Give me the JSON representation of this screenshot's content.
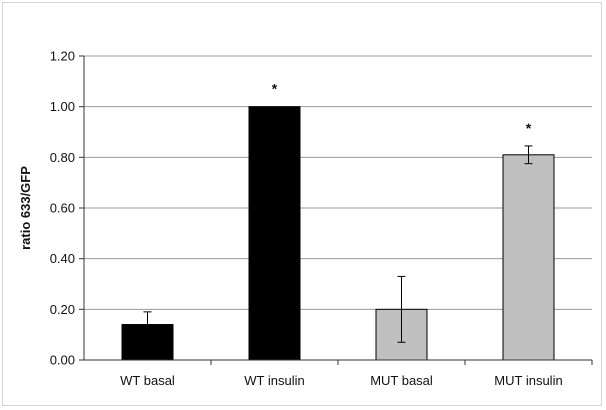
{
  "chart_data": {
    "type": "bar",
    "title": "",
    "xlabel": "",
    "ylabel": "ratio 633/GFP",
    "ylim": [
      0,
      1.2
    ],
    "yticks": [
      "0.00",
      "0.20",
      "0.40",
      "0.60",
      "0.80",
      "1.00",
      "1.20"
    ],
    "grid": true,
    "categories": [
      "WT basal",
      "WT insulin",
      "MUT basal",
      "MUT insulin"
    ],
    "values": [
      0.14,
      1.0,
      0.2,
      0.81
    ],
    "error": [
      0.05,
      0.0,
      0.13,
      0.035
    ],
    "significance": [
      "",
      "*",
      "",
      "*"
    ],
    "colors": [
      "#000000",
      "#000000",
      "#c0c0c0",
      "#c0c0c0"
    ]
  }
}
